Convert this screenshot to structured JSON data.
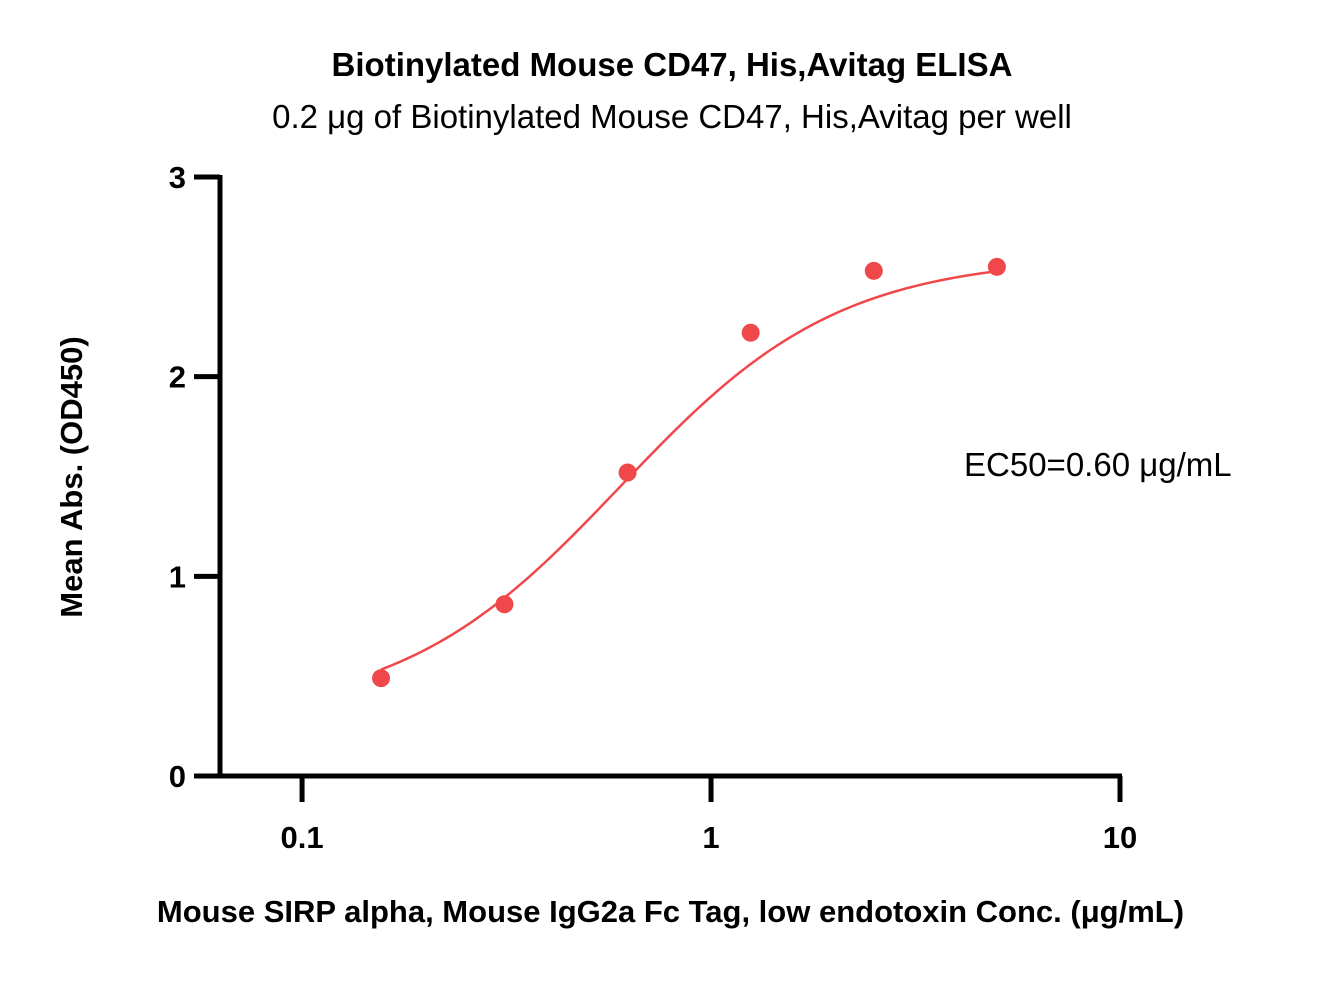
{
  "chart_data": {
    "type": "scatter",
    "title": "Biotinylated Mouse CD47, His,Avitag ELISA",
    "subtitle": "0.2 μg of Biotinylated Mouse CD47, His,Avitag per well",
    "xlabel": "Mouse SIRP alpha, Mouse IgG2a Fc Tag, low endotoxin Conc. (μg/mL)",
    "ylabel": "Mean Abs. (OD450)",
    "x_scale": "log",
    "xlim": [
      0.063,
      10
    ],
    "ylim": [
      0,
      3
    ],
    "x_ticks": [
      0.1,
      1,
      10
    ],
    "x_tick_labels": [
      "0.1",
      "1",
      "10"
    ],
    "y_ticks": [
      0,
      1,
      2,
      3
    ],
    "y_tick_labels": [
      "0",
      "1",
      "2",
      "3"
    ],
    "grid": false,
    "series": [
      {
        "color": "#f0474b",
        "points": [
          {
            "x": 0.156,
            "y": 0.49
          },
          {
            "x": 0.3125,
            "y": 0.86
          },
          {
            "x": 0.625,
            "y": 1.52
          },
          {
            "x": 1.25,
            "y": 2.22
          },
          {
            "x": 2.5,
            "y": 2.53
          },
          {
            "x": 5.0,
            "y": 2.55
          }
        ],
        "fit": {
          "model": "4PL",
          "bottom": 0.3,
          "top": 2.6,
          "ec50": 0.6,
          "hill": 1.62
        }
      }
    ],
    "annotations": [
      "EC50=0.60 μg/mL"
    ]
  }
}
